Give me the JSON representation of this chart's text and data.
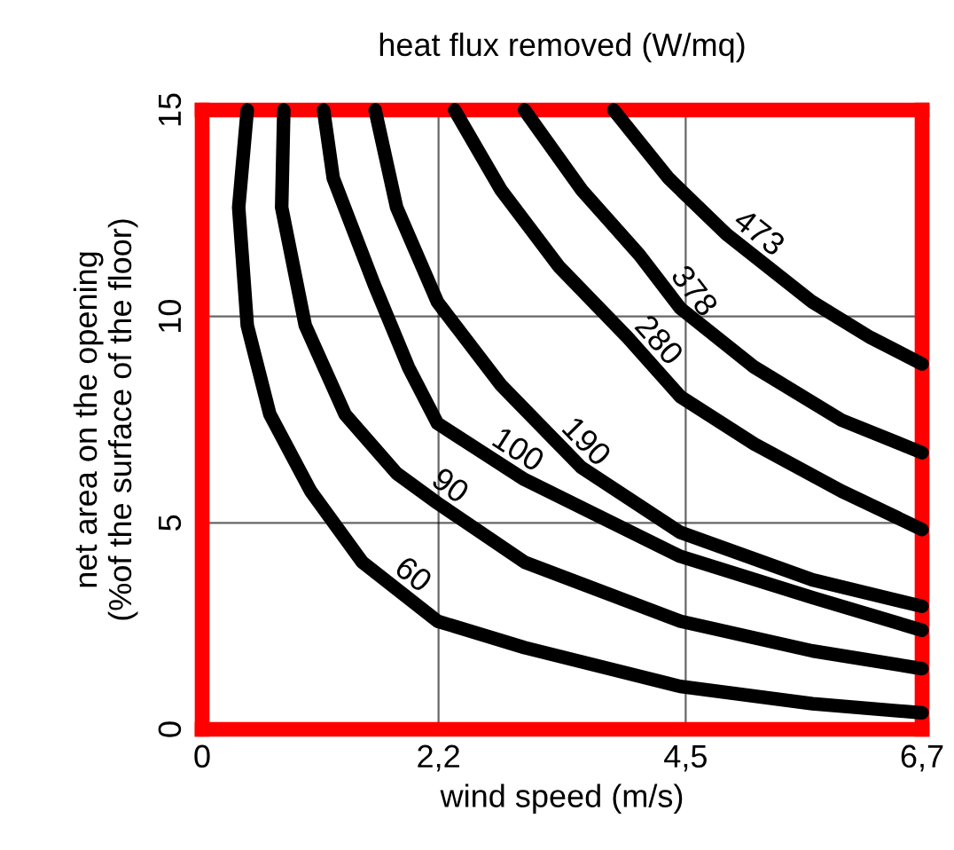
{
  "chart_data": {
    "type": "line",
    "title": "heat flux removed (W/mq)",
    "xlabel": "wind speed (m/s)",
    "ylabel": "net area on the opening\n(%of the surface of the floor)",
    "xlim": [
      0,
      6.7
    ],
    "ylim": [
      0,
      15
    ],
    "xticks": [
      0,
      {
        "value": 2.2,
        "label": "2,2"
      },
      {
        "value": 4.5,
        "label": "4,5"
      },
      {
        "value": 6.7,
        "label": "6,7"
      }
    ],
    "yticks": [
      0,
      5,
      10,
      15
    ],
    "grid": true,
    "line_style": "solid",
    "marker": "none",
    "series": [
      {
        "color": "#000000",
        "x": [
          0.42,
          0.34,
          0.42,
          0.63,
          1.01,
          1.49,
          2.19,
          3.0,
          4.45,
          5.68,
          6.7
        ],
        "values": [
          15,
          12.64,
          9.78,
          7.63,
          5.77,
          4.05,
          2.62,
          1.98,
          1.04,
          0.62,
          0.4
        ]
      },
      {
        "color": "#000000",
        "x": [
          0.76,
          0.74,
          0.96,
          1.33,
          1.81,
          2.19,
          3.0,
          4.45,
          5.68,
          6.7
        ],
        "values": [
          15,
          12.64,
          9.78,
          7.63,
          6.2,
          5.48,
          4.05,
          2.62,
          1.9,
          1.47
        ]
      },
      {
        "color": "#000000",
        "x": [
          1.13,
          1.22,
          1.6,
          1.92,
          2.19,
          3.0,
          4.45,
          5.68,
          6.7
        ],
        "values": [
          15,
          13.35,
          10.78,
          8.77,
          7.41,
          6.05,
          4.19,
          3.19,
          2.4
        ]
      },
      {
        "color": "#000000",
        "x": [
          1.61,
          1.81,
          2.19,
          2.78,
          3.53,
          4.45,
          5.68,
          6.7
        ],
        "values": [
          15,
          12.64,
          10.35,
          8.34,
          6.34,
          4.77,
          3.62,
          2.98
        ]
      },
      {
        "color": "#000000",
        "x": [
          2.35,
          2.78,
          3.32,
          3.96,
          4.45,
          5.14,
          5.95,
          6.7
        ],
        "values": [
          15,
          13.07,
          11.21,
          9.49,
          8.06,
          6.91,
          5.77,
          4.84
        ]
      },
      {
        "color": "#000000",
        "x": [
          3.0,
          3.53,
          4.07,
          4.45,
          5.14,
          5.95,
          6.7
        ],
        "values": [
          15,
          13.07,
          11.49,
          10.2,
          8.77,
          7.49,
          6.7
        ]
      },
      {
        "color": "#000000",
        "x": [
          3.83,
          4.34,
          4.88,
          5.68,
          6.22,
          6.7
        ],
        "values": [
          15,
          13.35,
          11.99,
          10.35,
          9.49,
          8.85
        ]
      }
    ],
    "annotations": [
      {
        "text": "60",
        "x": 1.84,
        "y": 3.34
      },
      {
        "text": "90",
        "x": 2.19,
        "y": 5.48
      },
      {
        "text": "100",
        "x": 2.83,
        "y": 6.34
      },
      {
        "text": "190",
        "x": 3.43,
        "y": 6.61
      },
      {
        "text": "280",
        "x": 4.1,
        "y": 9.08
      },
      {
        "text": "378",
        "x": 4.42,
        "y": 10.3
      },
      {
        "text": "473",
        "x": 5.06,
        "y": 11.62
      }
    ]
  }
}
